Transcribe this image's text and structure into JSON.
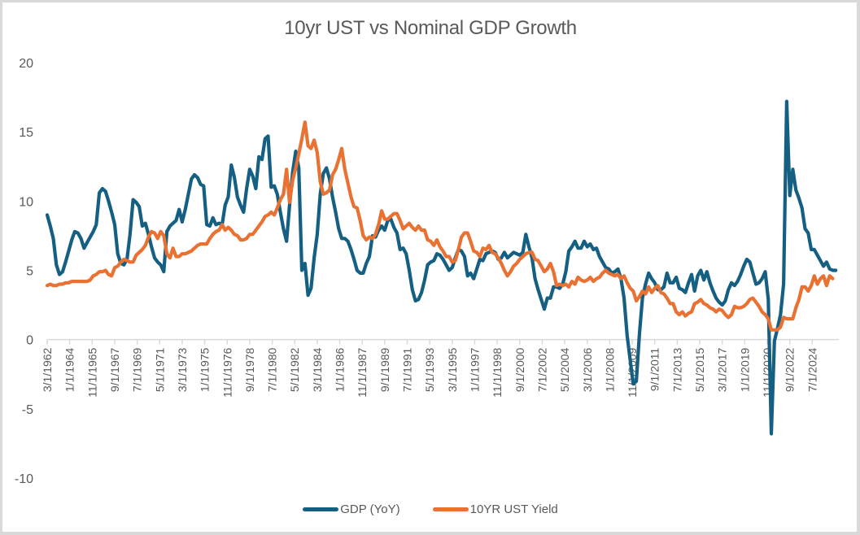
{
  "chart_data": {
    "type": "line",
    "title": "10yr UST vs Nominal GDP Growth",
    "xlabel": "",
    "ylabel": "",
    "ylim": [
      -10,
      20
    ],
    "yticks": [
      20,
      15,
      10,
      5,
      0,
      -5,
      -10
    ],
    "grid": false,
    "legend_position": "bottom",
    "x_start": "1962-03",
    "x_step_months": 3,
    "xtick_labels": [
      "3/1/1962",
      "1/1/1964",
      "11/1/1965",
      "9/1/1967",
      "7/1/1969",
      "5/1/1971",
      "3/1/1973",
      "1/1/1975",
      "11/1/1976",
      "9/1/1978",
      "7/1/1980",
      "5/1/1982",
      "3/1/1984",
      "1/1/1986",
      "11/1/1987",
      "9/1/1989",
      "7/1/1991",
      "5/1/1993",
      "3/1/1995",
      "1/1/1997",
      "11/1/1998",
      "9/1/2000",
      "7/1/2002",
      "5/1/2004",
      "3/1/2006",
      "1/1/2008",
      "11/1/2009",
      "9/1/2011",
      "7/1/2013",
      "5/1/2015",
      "3/1/2017",
      "1/1/2019",
      "11/1/2020",
      "9/1/2022",
      "7/1/2024"
    ],
    "series": [
      {
        "name": "GDP (YoY)",
        "color": "#156082",
        "values": [
          9.0,
          8.2,
          7.3,
          5.4,
          4.7,
          4.9,
          5.6,
          6.4,
          7.2,
          7.8,
          7.7,
          7.3,
          6.6,
          7.0,
          7.4,
          7.8,
          8.3,
          10.6,
          10.9,
          10.7,
          10.0,
          9.2,
          8.3,
          6.2,
          5.5,
          5.4,
          5.8,
          7.6,
          10.1,
          9.9,
          9.6,
          8.2,
          8.4,
          7.6,
          6.7,
          5.9,
          5.6,
          5.4,
          4.9,
          7.8,
          8.2,
          8.4,
          8.6,
          9.4,
          8.5,
          9.4,
          10.5,
          11.6,
          11.9,
          11.7,
          11.2,
          11.1,
          8.3,
          8.2,
          8.8,
          8.3,
          8.4,
          8.3,
          9.7,
          10.3,
          12.6,
          11.7,
          10.3,
          9.7,
          9.2,
          10.9,
          12.3,
          11.8,
          10.9,
          13.2,
          13.0,
          14.5,
          14.7,
          11.0,
          11.1,
          10.5,
          9.2,
          8.0,
          7.1,
          9.7,
          12.1,
          13.6,
          12.4,
          5.0,
          5.5,
          3.2,
          3.7,
          5.9,
          7.6,
          10.5,
          12.0,
          12.4,
          11.6,
          10.3,
          9.2,
          8.0,
          7.3,
          7.3,
          7.1,
          6.5,
          5.8,
          5.0,
          4.8,
          4.8,
          5.5,
          6.0,
          7.5,
          7.4,
          7.9,
          8.2,
          7.9,
          8.6,
          8.7,
          8.1,
          7.7,
          6.5,
          6.6,
          6.2,
          5.0,
          3.6,
          2.8,
          2.9,
          3.4,
          4.3,
          5.4,
          5.6,
          5.7,
          6.2,
          6.1,
          5.8,
          5.4,
          5.0,
          5.2,
          5.9,
          6.5,
          6.4,
          6.0,
          4.6,
          4.8,
          4.4,
          5.1,
          5.8,
          5.7,
          6.2,
          6.3,
          6.4,
          6.3,
          5.8,
          5.9,
          6.3,
          5.9,
          6.1,
          6.3,
          6.2,
          6.1,
          6.3,
          7.6,
          6.7,
          5.9,
          4.4,
          3.6,
          2.9,
          2.2,
          3.0,
          3.0,
          3.8,
          3.8,
          3.7,
          4.0,
          4.9,
          6.4,
          6.7,
          7.1,
          6.6,
          6.6,
          7.1,
          6.7,
          6.9,
          6.5,
          6.6,
          6.0,
          5.6,
          5.2,
          5.1,
          4.8,
          4.9,
          5.1,
          4.4,
          3.0,
          0.3,
          -1.5,
          -3.2,
          -3.0,
          0.4,
          3.0,
          4.0,
          4.8,
          4.4,
          4.1,
          3.6,
          3.6,
          3.8,
          4.8,
          4.1,
          4.1,
          4.5,
          3.7,
          3.6,
          3.4,
          4.1,
          4.7,
          3.5,
          4.6,
          5.0,
          4.3,
          4.9,
          4.1,
          3.5,
          3.0,
          2.7,
          2.5,
          2.8,
          3.6,
          4.1,
          3.9,
          4.2,
          4.7,
          5.3,
          5.8,
          5.6,
          4.8,
          4.0,
          4.1,
          4.4,
          4.9,
          2.9,
          -6.8,
          -0.1,
          0.8,
          1.8,
          4.0,
          17.2,
          10.4,
          12.3,
          10.8,
          10.2,
          9.5,
          8.0,
          7.7,
          6.5,
          6.5,
          6.1,
          5.7,
          5.3,
          5.6,
          5.1,
          5.0,
          5.0
        ]
      },
      {
        "name": "10YR UST Yield",
        "color": "#E97132",
        "values": [
          3.9,
          4.0,
          3.9,
          3.9,
          4.0,
          4.0,
          4.1,
          4.1,
          4.2,
          4.2,
          4.2,
          4.2,
          4.2,
          4.2,
          4.3,
          4.6,
          4.7,
          4.9,
          4.9,
          5.0,
          4.7,
          4.6,
          5.2,
          5.3,
          5.6,
          5.8,
          5.7,
          5.6,
          5.6,
          6.1,
          6.3,
          6.5,
          6.8,
          7.4,
          7.8,
          7.7,
          7.3,
          7.8,
          7.5,
          6.2,
          5.9,
          6.6,
          6.0,
          6.0,
          6.2,
          6.2,
          6.3,
          6.4,
          6.6,
          6.8,
          6.9,
          6.9,
          6.9,
          7.3,
          7.6,
          7.8,
          7.9,
          8.3,
          7.9,
          8.1,
          7.9,
          7.6,
          7.5,
          7.2,
          7.2,
          7.3,
          7.6,
          7.6,
          7.9,
          8.2,
          8.5,
          8.9,
          9.0,
          9.2,
          9.0,
          9.5,
          10.1,
          10.5,
          12.3,
          9.9,
          11.5,
          12.4,
          13.4,
          14.5,
          15.7,
          14.0,
          13.8,
          14.4,
          13.5,
          11.4,
          10.5,
          10.6,
          10.8,
          11.9,
          12.3,
          13.0,
          13.8,
          12.3,
          11.3,
          10.3,
          9.6,
          9.5,
          8.6,
          7.5,
          7.2,
          7.4,
          7.3,
          7.6,
          8.3,
          9.3,
          8.7,
          8.7,
          8.9,
          9.1,
          9.1,
          8.6,
          8.0,
          8.2,
          8.4,
          8.1,
          7.9,
          8.2,
          7.9,
          7.9,
          7.2,
          7.1,
          6.8,
          7.2,
          6.7,
          6.4,
          6.0,
          6.0,
          5.6,
          5.7,
          6.5,
          7.4,
          7.7,
          7.7,
          7.1,
          6.4,
          6.3,
          6.0,
          6.6,
          6.5,
          6.8,
          6.3,
          6.2,
          5.9,
          5.5,
          5.0,
          4.6,
          4.9,
          5.3,
          5.5,
          5.8,
          6.0,
          6.2,
          6.3,
          6.3,
          5.8,
          5.7,
          5.3,
          4.9,
          5.1,
          5.5,
          4.9,
          3.9,
          4.0,
          3.9,
          4.0,
          3.8,
          4.2,
          4.0,
          4.5,
          4.3,
          4.2,
          4.3,
          4.5,
          4.2,
          4.4,
          4.5,
          4.8,
          5.0,
          4.8,
          4.7,
          4.6,
          4.7,
          4.4,
          4.6,
          4.1,
          3.7,
          3.5,
          2.8,
          3.1,
          3.5,
          3.3,
          3.8,
          3.4,
          3.7,
          3.9,
          3.4,
          3.3,
          3.0,
          2.6,
          2.6,
          2.0,
          1.8,
          2.0,
          1.7,
          1.9,
          2.0,
          2.6,
          2.7,
          2.9,
          2.6,
          2.5,
          2.3,
          2.2,
          2.0,
          2.2,
          2.1,
          1.8,
          1.6,
          1.8,
          2.4,
          2.3,
          2.3,
          2.4,
          2.6,
          2.9,
          3.0,
          2.7,
          2.4,
          2.0,
          1.8,
          1.5,
          0.7,
          0.7,
          0.7,
          0.9,
          1.6,
          1.5,
          1.5,
          1.5,
          2.3,
          2.9,
          3.8,
          3.8,
          3.5,
          3.9,
          4.6,
          4.0,
          4.4,
          4.6,
          3.9,
          4.6,
          4.4
        ]
      }
    ]
  }
}
